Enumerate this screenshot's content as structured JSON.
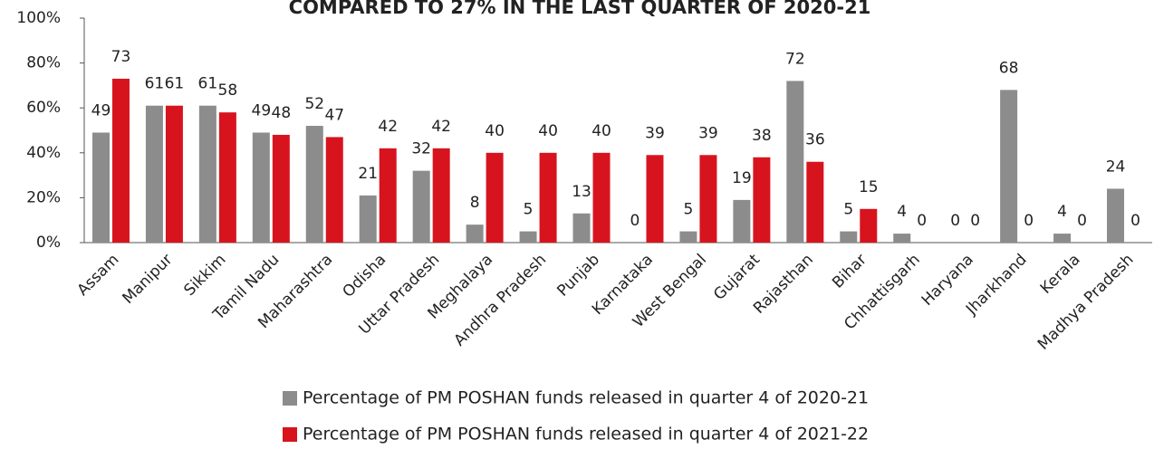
{
  "chart_data": {
    "type": "bar",
    "title": "COMPARED TO 27% IN THE LAST QUARTER OF 2020-21",
    "categories": [
      "Assam",
      "Manipur",
      "Sikkim",
      "Tamil Nadu",
      "Maharashtra",
      "Odisha",
      "Uttar Pradesh",
      "Meghalaya",
      "Andhra Pradesh",
      "Punjab",
      "Karnataka",
      "West Bengal",
      "Gujarat",
      "Rajasthan",
      "Bihar",
      "Chhattisgarh",
      "Haryana",
      "Jharkhand",
      "Kerala",
      "Madhya Pradesh"
    ],
    "series": [
      {
        "name": "Percentage of PM POSHAN funds released in quarter 4 of 2020-21",
        "color": "#8c8c8c",
        "values": [
          49,
          61,
          61,
          49,
          52,
          21,
          32,
          8,
          5,
          13,
          0,
          5,
          19,
          72,
          5,
          4,
          0,
          68,
          4,
          24
        ]
      },
      {
        "name": "Percentage of PM POSHAN funds released in quarter 4 of 2021-22",
        "color": "#d7141e",
        "values": [
          73,
          61,
          58,
          48,
          47,
          42,
          42,
          40,
          40,
          40,
          39,
          39,
          38,
          36,
          15,
          0,
          0,
          0,
          0,
          0
        ]
      }
    ],
    "ylim": [
      0,
      100
    ],
    "yticks": [
      {
        "value": 0,
        "label": "0%"
      },
      {
        "value": 20,
        "label": "20%"
      },
      {
        "value": 40,
        "label": "40%"
      },
      {
        "value": 60,
        "label": "60%"
      },
      {
        "value": 80,
        "label": "80%"
      },
      {
        "value": 100,
        "label": "100%"
      }
    ],
    "grid": false
  }
}
